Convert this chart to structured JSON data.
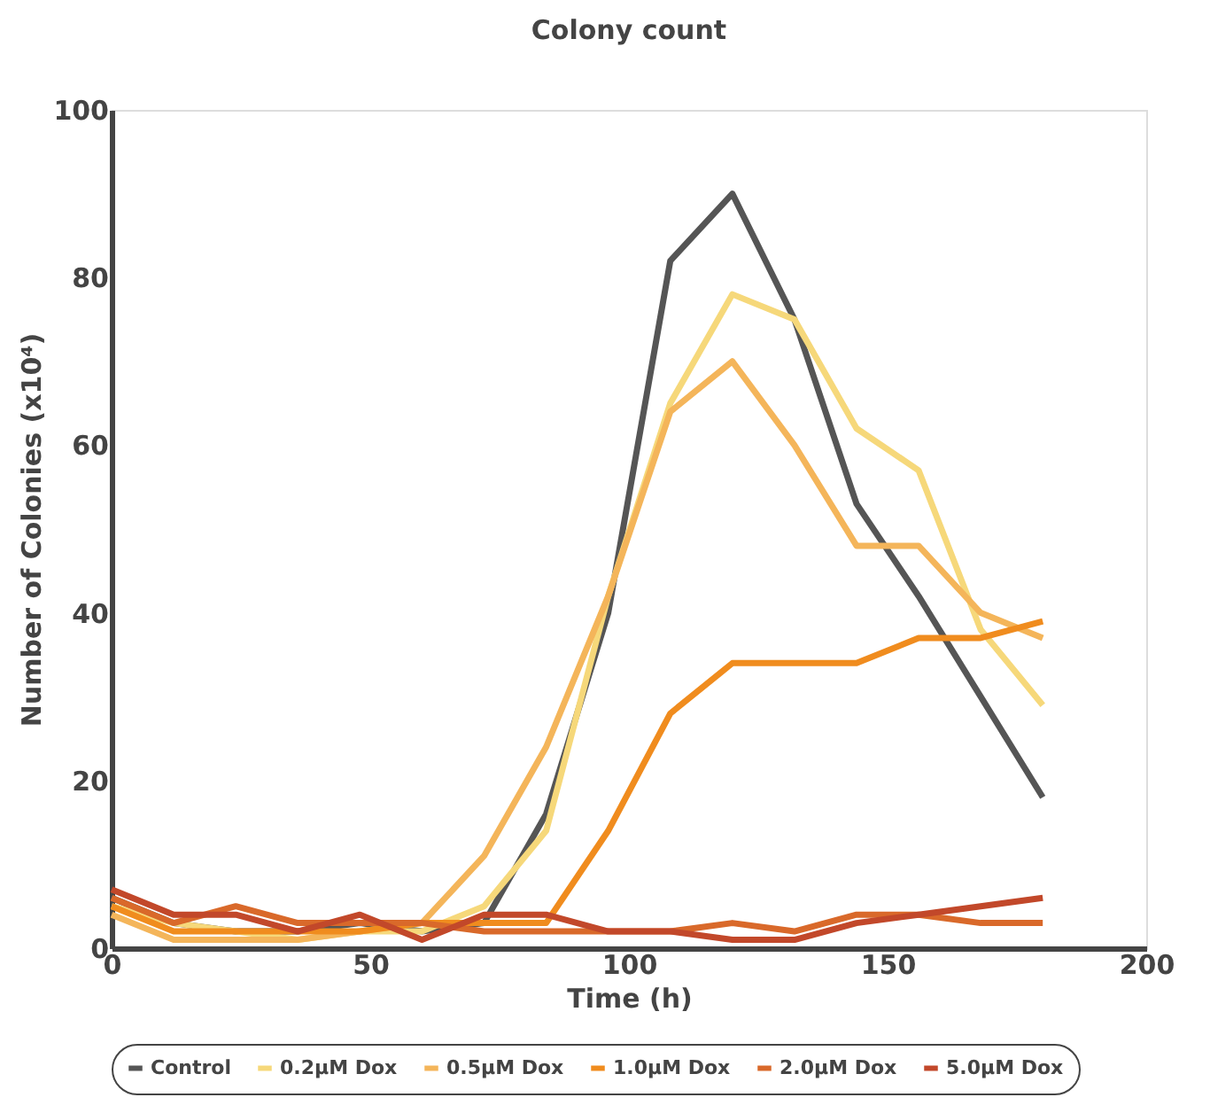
{
  "chart_data": {
    "type": "line",
    "title": "Colony count",
    "xlabel": "Time (h)",
    "ylabel": "Number of Colonies (x10⁴)",
    "x": [
      0,
      12,
      24,
      36,
      48,
      60,
      72,
      84,
      96,
      108,
      120,
      132,
      144,
      156,
      168,
      180
    ],
    "series": [
      {
        "name": "Control",
        "color": "#555555",
        "values": [
          6,
          3,
          2,
          2,
          3,
          2,
          3,
          16,
          40,
          82,
          90,
          75,
          53,
          42,
          30,
          18
        ]
      },
      {
        "name": "0.2μM Dox",
        "color": "#f6d87a",
        "values": [
          5,
          3,
          2,
          1,
          2,
          2,
          5,
          14,
          42,
          65,
          78,
          75,
          62,
          57,
          38,
          29
        ]
      },
      {
        "name": "0.5μM Dox",
        "color": "#f4b55a",
        "values": [
          4,
          1,
          1,
          1,
          2,
          3,
          11,
          24,
          42,
          64,
          70,
          60,
          48,
          48,
          40,
          37
        ]
      },
      {
        "name": "1.0μM Dox",
        "color": "#f08c1e",
        "values": [
          5,
          2,
          2,
          2,
          2,
          3,
          3,
          3,
          14,
          28,
          34,
          34,
          34,
          37,
          37,
          39
        ]
      },
      {
        "name": "2.0μM Dox",
        "color": "#d9692a",
        "values": [
          6,
          3,
          5,
          3,
          3,
          3,
          2,
          2,
          2,
          2,
          3,
          2,
          4,
          4,
          3,
          3
        ]
      },
      {
        "name": "5.0μM Dox",
        "color": "#c2482a",
        "values": [
          7,
          4,
          4,
          2,
          4,
          1,
          4,
          4,
          2,
          2,
          1,
          1,
          3,
          4,
          5,
          6
        ]
      }
    ],
    "xlim": [
      0,
      200
    ],
    "xticks": [
      0,
      50,
      100,
      150,
      200
    ],
    "ylim": [
      0,
      100
    ],
    "yticks": [
      0,
      20,
      40,
      60,
      80,
      100
    ],
    "grid": false,
    "legend": "bottom",
    "marker": "none",
    "line_style": "solid"
  }
}
